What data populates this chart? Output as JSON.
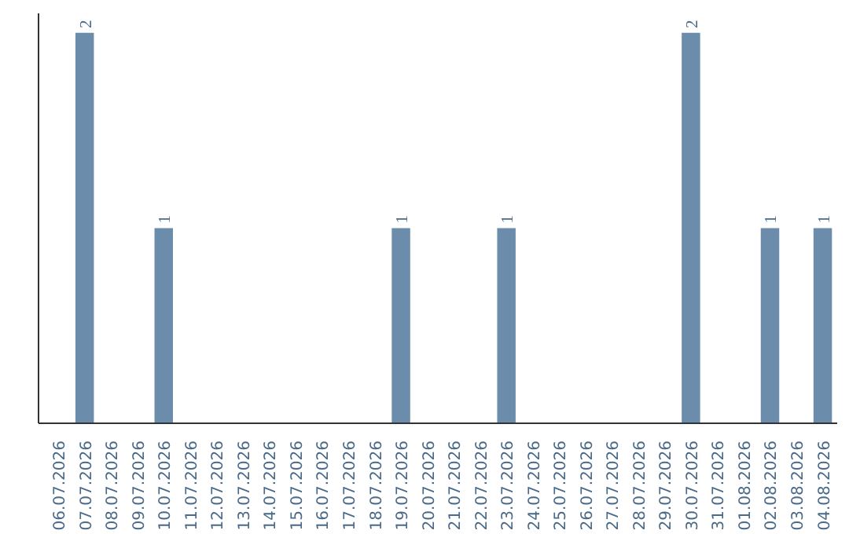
{
  "chart_data": {
    "type": "bar",
    "categories": [
      "06.07.2026",
      "07.07.2026",
      "08.07.2026",
      "09.07.2026",
      "10.07.2026",
      "11.07.2026",
      "12.07.2026",
      "13.07.2026",
      "14.07.2026",
      "15.07.2026",
      "16.07.2026",
      "17.07.2026",
      "18.07.2026",
      "19.07.2026",
      "20.07.2026",
      "21.07.2026",
      "22.07.2026",
      "23.07.2026",
      "24.07.2026",
      "25.07.2026",
      "26.07.2026",
      "27.07.2026",
      "28.07.2026",
      "29.07.2026",
      "30.07.2026",
      "31.07.2026",
      "01.08.2026",
      "02.08.2026",
      "03.08.2026",
      "04.08.2026"
    ],
    "values": [
      0,
      2,
      0,
      0,
      1,
      0,
      0,
      0,
      0,
      0,
      0,
      0,
      0,
      1,
      0,
      0,
      0,
      1,
      0,
      0,
      0,
      0,
      0,
      0,
      2,
      0,
      0,
      1,
      0,
      1
    ],
    "value_labels": [
      null,
      "2",
      null,
      null,
      "1",
      null,
      null,
      null,
      null,
      null,
      null,
      null,
      null,
      "1",
      null,
      null,
      null,
      "1",
      null,
      null,
      null,
      null,
      null,
      null,
      "2",
      null,
      null,
      "1",
      null,
      "1"
    ],
    "color": "#6b8cab",
    "grid": false,
    "tick_labels": "x"
  }
}
